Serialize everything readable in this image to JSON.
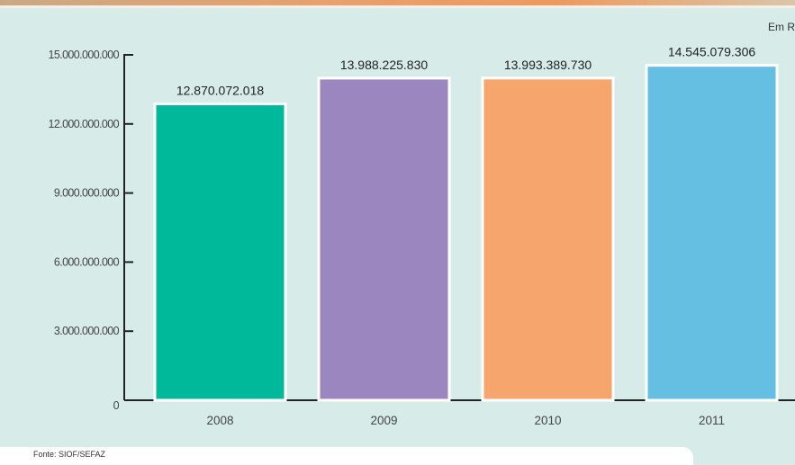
{
  "unit_note": "Em R",
  "source": "Fonte: SIOF/SEFAZ",
  "colors": {
    "2008": "#00b89a",
    "2009": "#9b86bf",
    "2010": "#f6a66c",
    "2011": "#64bfe2",
    "background": "#d7ece8",
    "axis": "#222222"
  },
  "chart_data": {
    "type": "bar",
    "title": "",
    "xlabel": "",
    "ylabel": "",
    "categories": [
      "2008",
      "2009",
      "2010",
      "2011"
    ],
    "values": [
      12870072018,
      13988225830,
      13993389730,
      14545079306
    ],
    "value_labels": [
      "12.870.072.018",
      "13.988.225.830",
      "13.993.389.730",
      "14.545.079.306"
    ],
    "ylim": [
      0,
      15000000000
    ],
    "yticks": [
      0,
      3000000000,
      6000000000,
      9000000000,
      12000000000,
      15000000000
    ],
    "ytick_labels": [
      "0",
      "3.000.000.000",
      "6.000.000.000",
      "9.000.000.000",
      "12.000.000.000",
      "15.000.000.000"
    ],
    "grid": false,
    "legend": "none"
  }
}
